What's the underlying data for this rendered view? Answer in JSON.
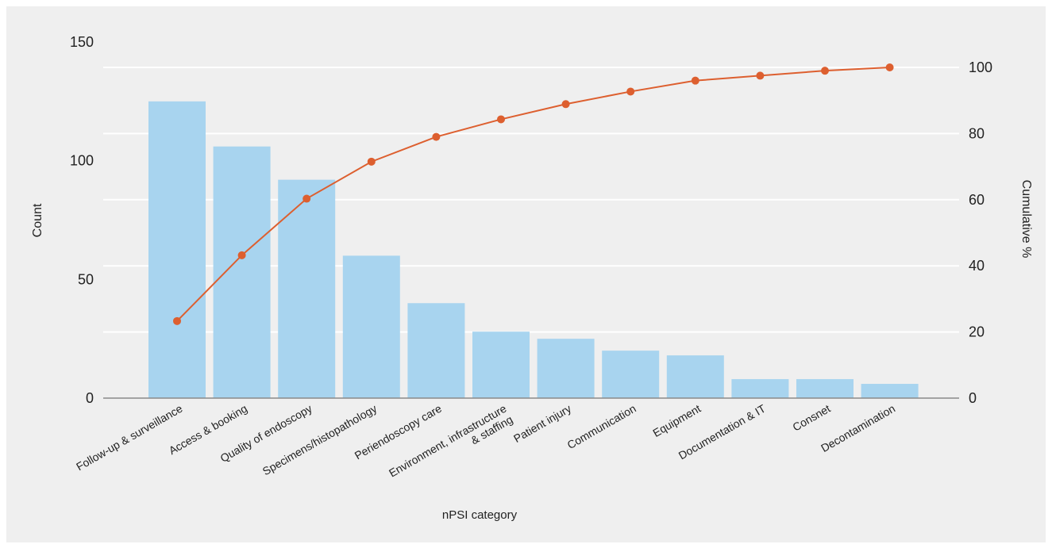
{
  "chart_data": {
    "type": "bar",
    "title": "",
    "xlabel": "nPSI category",
    "ylabel": "Count",
    "y2label": "Cumulative %",
    "categories": [
      [
        "Follow-up & surveillance"
      ],
      [
        "Access & booking"
      ],
      [
        "Quality of endoscopy"
      ],
      [
        "Specimens/histopathology"
      ],
      [
        "Periendoscopy care"
      ],
      [
        "Environment, infrastructure",
        "& staffing"
      ],
      [
        "Patient injury"
      ],
      [
        "Communication"
      ],
      [
        "Equipment"
      ],
      [
        "Documentation & IT"
      ],
      [
        "Consnet"
      ],
      [
        "Decontamination"
      ]
    ],
    "series": [
      {
        "kind": "bar",
        "axis": "left",
        "values": [
          125,
          106,
          92,
          60,
          40,
          28,
          25,
          20,
          18,
          8,
          8,
          6
        ]
      },
      {
        "kind": "line",
        "axis": "right",
        "values": [
          23.3,
          43.2,
          60.3,
          71.5,
          79,
          84.3,
          88.9,
          92.7,
          96,
          97.5,
          99,
          100
        ]
      }
    ],
    "ylim": [
      0,
      150
    ],
    "y_ticks": [
      0,
      50,
      100,
      150
    ],
    "y2lim": [
      0,
      100
    ],
    "y2_ticks": [
      0,
      20,
      40,
      60,
      80,
      100
    ],
    "grid": true,
    "colors": {
      "bar": "#a8d4ef",
      "line": "#dd5f2f",
      "grid": "#ffffff",
      "axis": "#8a8a8a"
    }
  }
}
